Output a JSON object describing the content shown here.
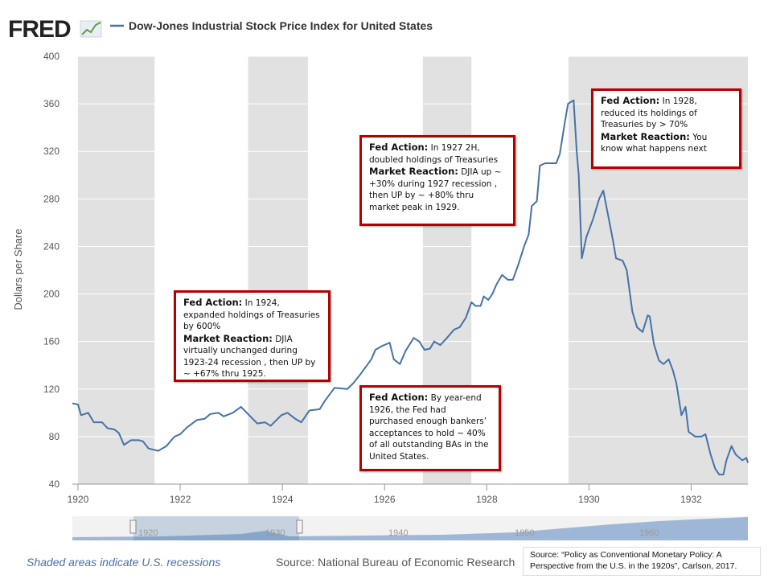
{
  "logo": "FRED",
  "chart_data": {
    "type": "line",
    "title": "Dow-Jones Industrial Stock Price Index for United States",
    "y_label": "Dollars per Share",
    "x": [
      1919.89,
      1920.0,
      1920.06,
      1920.2,
      1920.31,
      1920.47,
      1920.58,
      1920.71,
      1920.8,
      1920.9,
      1921.04,
      1921.19,
      1921.27,
      1921.38,
      1921.57,
      1921.73,
      1921.89,
      1922.0,
      1922.14,
      1922.33,
      1922.48,
      1922.59,
      1922.75,
      1922.85,
      1923.03,
      1923.19,
      1923.35,
      1923.51,
      1923.66,
      1923.77,
      1923.98,
      1924.1,
      1924.25,
      1924.37,
      1924.53,
      1924.73,
      1924.83,
      1925.02,
      1925.27,
      1925.39,
      1925.52,
      1925.74,
      1925.82,
      1925.94,
      1926.1,
      1926.18,
      1926.3,
      1926.41,
      1926.57,
      1926.68,
      1926.78,
      1926.89,
      1926.97,
      1927.09,
      1927.2,
      1927.36,
      1927.47,
      1927.59,
      1927.7,
      1927.78,
      1927.88,
      1927.94,
      1928.03,
      1928.11,
      1928.19,
      1928.3,
      1928.41,
      1928.51,
      1928.62,
      1928.73,
      1928.82,
      1928.88,
      1928.98,
      1929.04,
      1929.14,
      1929.36,
      1929.43,
      1929.53,
      1929.59,
      1929.7,
      1929.76,
      1929.8,
      1929.86,
      1929.95,
      1930.08,
      1930.2,
      1930.28,
      1930.38,
      1930.47,
      1930.53,
      1930.66,
      1930.74,
      1930.85,
      1930.94,
      1931.05,
      1931.15,
      1931.19,
      1931.27,
      1931.37,
      1931.46,
      1931.56,
      1931.64,
      1931.71,
      1931.81,
      1931.89,
      1931.95,
      1932.08,
      1932.2,
      1932.28,
      1932.38,
      1932.47,
      1932.55,
      1932.63,
      1932.69,
      1932.79,
      1932.87,
      1933.0,
      1933.08,
      1933.11
    ],
    "series": [
      {
        "name": "Dow-Jones Industrial Stock Price Index for United States",
        "color": "#4572a7",
        "values": [
          108,
          107,
          98,
          100,
          92,
          92,
          87,
          86,
          83,
          73,
          77,
          77,
          76,
          70,
          68,
          72,
          80,
          82,
          88,
          94,
          95,
          99,
          100,
          97,
          100,
          105,
          98,
          91,
          92,
          89,
          98,
          100,
          95,
          92,
          102,
          103,
          110,
          121,
          120,
          125,
          132,
          145,
          153,
          156,
          159,
          145,
          141,
          152,
          163,
          160,
          153,
          154,
          160,
          157,
          162,
          170,
          172,
          180,
          193,
          190,
          190,
          198,
          195,
          200,
          208,
          216,
          212,
          212,
          225,
          240,
          250,
          274,
          278,
          308,
          310,
          310,
          318,
          345,
          360,
          363,
          320,
          300,
          230,
          248,
          263,
          280,
          287,
          265,
          245,
          230,
          228,
          220,
          185,
          172,
          168,
          182,
          181,
          158,
          144,
          141,
          145,
          136,
          125,
          98,
          105,
          84,
          80,
          80,
          82,
          65,
          53,
          48,
          48,
          60,
          72,
          65,
          60,
          62,
          58
        ]
      }
    ],
    "xlim": [
      1919.89,
      1933.11
    ],
    "xticks": [
      1920,
      1922,
      1924,
      1926,
      1928,
      1930,
      1932
    ],
    "ylim": [
      40,
      400
    ],
    "yticks": [
      40,
      80,
      120,
      160,
      200,
      240,
      280,
      320,
      360,
      400
    ],
    "grid": true,
    "recessions": [
      [
        1920.0,
        1921.5
      ],
      [
        1923.33,
        1924.5
      ],
      [
        1926.75,
        1927.7
      ],
      [
        1929.6,
        1933.11
      ]
    ],
    "recession_note": "Shaded areas indicate U.S. recessions",
    "source": "Source: National Bureau of Economic Research",
    "navigator_labels": [
      "1920",
      "1930",
      "1940",
      "1950",
      "1960"
    ],
    "annotations": [
      {
        "action_label": "Fed Action:",
        "action": "In 1924, expanded holdings of Treasuries by 600%",
        "reaction_label": "Market Reaction:",
        "reaction": "DJIA virtually unchanged during 1923-24 recession , then UP by ~ +67% thru 1925."
      },
      {
        "action_label": "Fed Action:",
        "action": "In 1927 2H, doubled holdings of Treasuries",
        "reaction_label": "Market Reaction:",
        "reaction": "DJIA up ~ +30% during 1927 recession , then UP by ~ +80% thru market peak in 1929."
      },
      {
        "action_label": "Fed Action:",
        "action": "In 1928, reduced its holdings of Treasuries by > 70%",
        "reaction_label": "Market Reaction:",
        "reaction": "You know what happens next"
      },
      {
        "action_label": "Fed Action:",
        "action": "By year-end 1926, the Fed had purchased enough bankers’ acceptances to hold ~ 40% of all outstanding BAs in the United States."
      }
    ],
    "citation": "Source: “Policy as Conventional Monetary Policy: A Perspective from the U.S. in the 1920s”, Carlson, 2017."
  }
}
